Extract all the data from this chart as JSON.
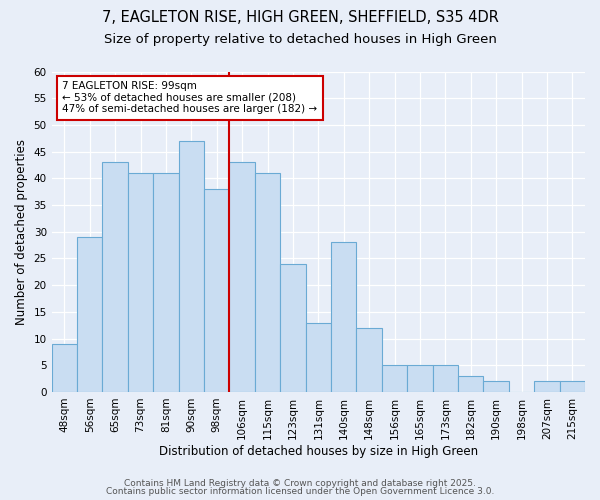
{
  "title_line1": "7, EAGLETON RISE, HIGH GREEN, SHEFFIELD, S35 4DR",
  "title_line2": "Size of property relative to detached houses in High Green",
  "xlabel": "Distribution of detached houses by size in High Green",
  "ylabel": "Number of detached properties",
  "bar_labels": [
    "48sqm",
    "56sqm",
    "65sqm",
    "73sqm",
    "81sqm",
    "90sqm",
    "98sqm",
    "106sqm",
    "115sqm",
    "123sqm",
    "131sqm",
    "140sqm",
    "148sqm",
    "156sqm",
    "165sqm",
    "173sqm",
    "182sqm",
    "190sqm",
    "198sqm",
    "207sqm",
    "215sqm"
  ],
  "bar_values": [
    9,
    29,
    43,
    41,
    41,
    47,
    38,
    43,
    41,
    24,
    13,
    28,
    12,
    5,
    5,
    5,
    3,
    2,
    0,
    2,
    2
  ],
  "bar_color": "#c9ddf2",
  "bar_edgecolor": "#6aaad4",
  "vline_x_index": 6,
  "vline_color": "#cc0000",
  "annotation_text": "7 EAGLETON RISE: 99sqm\n← 53% of detached houses are smaller (208)\n47% of semi-detached houses are larger (182) →",
  "annotation_box_edgecolor": "#cc0000",
  "annotation_box_facecolor": "white",
  "ylim": [
    0,
    60
  ],
  "yticks": [
    0,
    5,
    10,
    15,
    20,
    25,
    30,
    35,
    40,
    45,
    50,
    55,
    60
  ],
  "footer_line1": "Contains HM Land Registry data © Crown copyright and database right 2025.",
  "footer_line2": "Contains public sector information licensed under the Open Government Licence 3.0.",
  "background_color": "#e8eef8",
  "plot_bg_color": "#e8eef8",
  "grid_color": "white",
  "title_fontsize": 10.5,
  "subtitle_fontsize": 9.5,
  "axis_label_fontsize": 8.5,
  "tick_fontsize": 7.5,
  "annotation_fontsize": 7.5,
  "footer_fontsize": 6.5
}
